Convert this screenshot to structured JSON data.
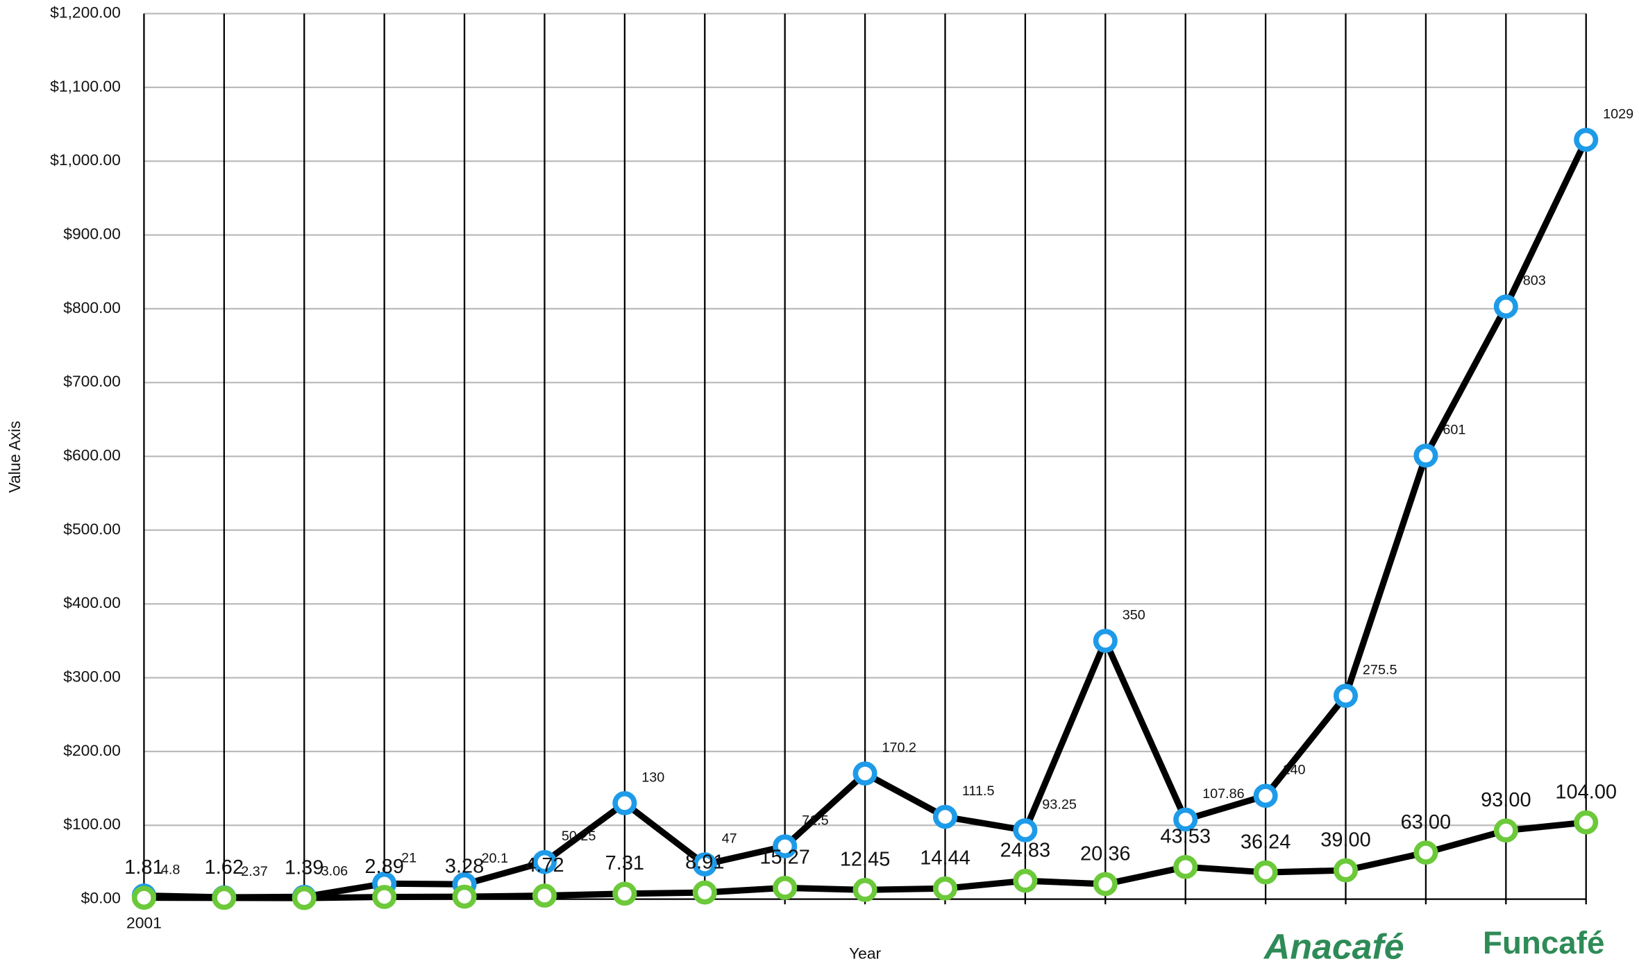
{
  "chart_data": {
    "type": "line",
    "x_label": "Year",
    "y_label": "Value Axis",
    "categories": [
      "2001",
      null,
      null,
      null,
      null,
      null,
      null,
      null,
      null,
      null,
      null,
      null,
      null,
      null,
      null,
      null,
      null,
      null,
      null
    ],
    "series": [
      {
        "name": null,
        "color": "#1e9be8",
        "values": [
          4.8,
          2.37,
          3.06,
          21,
          20.1,
          50.25,
          130,
          47,
          71.5,
          170.2,
          111.5,
          93.25,
          350,
          107.86,
          140,
          275.5,
          601,
          803,
          1029
        ]
      },
      {
        "name": null,
        "color": "#6cc93a",
        "values": [
          1.81,
          1.62,
          1.39,
          2.89,
          3.28,
          4.72,
          7.31,
          8.91,
          15.27,
          12.45,
          14.44,
          24.83,
          20.36,
          43.53,
          36.24,
          39.0,
          63.0,
          93.0,
          104.0
        ],
        "value_labels": [
          "1.81",
          "1.62",
          "1.39",
          "2.89",
          "3.28",
          "4.72",
          "7.31",
          "8.91",
          "15.27",
          "12.45",
          "14.44",
          "24.83",
          "20.36",
          "43.53",
          "36.24",
          "39.00",
          "63.00",
          "93.00",
          "104.00"
        ]
      }
    ],
    "ylim": [
      0,
      1200
    ],
    "yticks": [
      {
        "value": 0,
        "label": "$0.00"
      },
      {
        "value": 100,
        "label": "$100.00"
      },
      {
        "value": 200,
        "label": "$200.00"
      },
      {
        "value": 300,
        "label": "$300.00"
      },
      {
        "value": 400,
        "label": "$400.00"
      },
      {
        "value": 500,
        "label": "$500.00"
      },
      {
        "value": 600,
        "label": "$600.00"
      },
      {
        "value": 700,
        "label": "$700.00"
      },
      {
        "value": 800,
        "label": "$800.00"
      },
      {
        "value": 900,
        "label": "$900.00"
      },
      {
        "value": 1000,
        "label": "$1,000.00"
      },
      {
        "value": 1100,
        "label": "$1,100.00"
      },
      {
        "value": 1200,
        "label": "$1,200.00"
      }
    ],
    "grid": true
  },
  "logos": [
    "Anacafé",
    "Funcafé"
  ]
}
